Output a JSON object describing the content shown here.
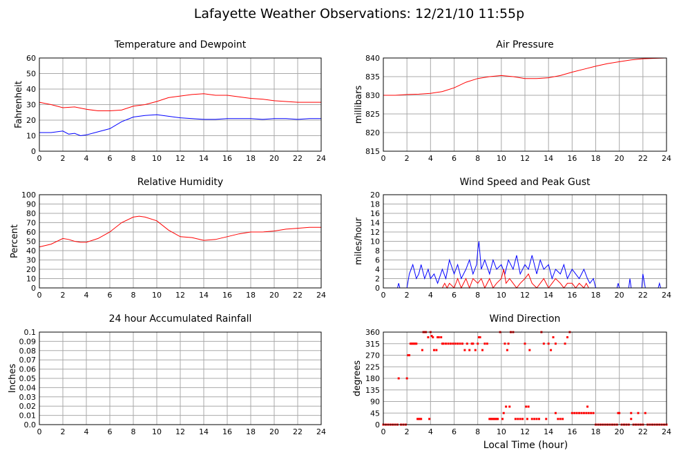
{
  "title": "Lafayette Weather Observations: 12/21/10 11:55p",
  "xlabel": "Local Time (hour)",
  "colors": {
    "red": "#ff0000",
    "blue": "#0000ff",
    "grid": "#a8a8a8"
  },
  "chart_data": [
    {
      "id": "temp",
      "type": "line",
      "title": "Temperature and Dewpoint",
      "ylabel": "Fahrenheit",
      "xlim": [
        0,
        24
      ],
      "ylim": [
        0,
        60
      ],
      "xticks": [
        "0",
        "2",
        "4",
        "6",
        "8",
        "10",
        "12",
        "14",
        "16",
        "18",
        "20",
        "22",
        "24"
      ],
      "yticks": [
        "0",
        "10",
        "20",
        "30",
        "40",
        "50",
        "60"
      ],
      "grid": true,
      "series": [
        {
          "color": "#ff0000",
          "x": [
            0,
            1,
            2,
            3,
            4,
            5,
            6,
            7,
            8,
            9,
            10,
            11,
            12,
            13,
            14,
            15,
            16,
            17,
            18,
            19,
            20,
            21,
            22,
            23,
            24
          ],
          "y": [
            31.5,
            30,
            28,
            28.5,
            27,
            26,
            26,
            26.5,
            29,
            30,
            32,
            34.5,
            35.5,
            36.5,
            37,
            36,
            36,
            35,
            34,
            33.5,
            32.5,
            32,
            31.5,
            31.5,
            31.5
          ]
        },
        {
          "color": "#0000ff",
          "x": [
            0,
            1,
            2,
            2.5,
            3,
            3.5,
            4,
            5,
            6,
            7,
            8,
            9,
            10,
            11,
            12,
            13,
            14,
            15,
            16,
            17,
            18,
            19,
            20,
            21,
            22,
            23,
            24
          ],
          "y": [
            12,
            12,
            13,
            11,
            11.5,
            10,
            10.5,
            12.5,
            14.5,
            19,
            22,
            23,
            23.5,
            22.5,
            21.5,
            21,
            20.5,
            20.5,
            21,
            21,
            21,
            20.5,
            21,
            21,
            20.5,
            21,
            21
          ]
        }
      ]
    },
    {
      "id": "pressure",
      "type": "line",
      "title": "Air Pressure",
      "ylabel": "millibars",
      "xlim": [
        0,
        24
      ],
      "ylim": [
        815,
        840
      ],
      "xticks": [
        "0",
        "2",
        "4",
        "6",
        "8",
        "10",
        "12",
        "14",
        "16",
        "18",
        "20",
        "22",
        "24"
      ],
      "yticks": [
        "815",
        "820",
        "825",
        "830",
        "835",
        "840"
      ],
      "grid": true,
      "series": [
        {
          "color": "#ff0000",
          "x": [
            0,
            1,
            2,
            3,
            4,
            5,
            6,
            7,
            8,
            9,
            10,
            11,
            12,
            13,
            14,
            15,
            16,
            17,
            18,
            19,
            20,
            21,
            22,
            23,
            24
          ],
          "y": [
            830,
            830,
            830.2,
            830.3,
            830.5,
            831,
            832,
            833.5,
            834.5,
            835,
            835.3,
            835,
            834.5,
            834.5,
            834.7,
            835.3,
            836.2,
            837,
            837.8,
            838.5,
            839,
            839.5,
            839.8,
            839.9,
            840
          ]
        }
      ]
    },
    {
      "id": "humidity",
      "type": "line",
      "title": "Relative Humidity",
      "ylabel": "Percent",
      "xlim": [
        0,
        24
      ],
      "ylim": [
        0,
        100
      ],
      "xticks": [
        "0",
        "2",
        "4",
        "6",
        "8",
        "10",
        "12",
        "14",
        "16",
        "18",
        "20",
        "22",
        "24"
      ],
      "yticks": [
        "0",
        "10",
        "20",
        "30",
        "40",
        "50",
        "60",
        "70",
        "80",
        "90",
        "100"
      ],
      "grid": true,
      "series": [
        {
          "color": "#ff0000",
          "x": [
            0,
            1,
            2,
            2.5,
            3,
            3.5,
            4,
            5,
            6,
            7,
            8,
            8.5,
            9,
            10,
            11,
            12,
            13,
            14,
            15,
            16,
            17,
            18,
            19,
            20,
            21,
            22,
            23,
            24
          ],
          "y": [
            44,
            47,
            53,
            52,
            50,
            49,
            49,
            53,
            60,
            70,
            76,
            77,
            76,
            72,
            62,
            55,
            54,
            51,
            52,
            55,
            58,
            60,
            60,
            61,
            63,
            64,
            65,
            65
          ]
        }
      ]
    },
    {
      "id": "wind",
      "type": "line",
      "title": "Wind Speed and Peak Gust",
      "ylabel": "miles/hour",
      "xlim": [
        0,
        24
      ],
      "ylim": [
        0,
        20
      ],
      "xticks": [
        "0",
        "2",
        "4",
        "6",
        "8",
        "10",
        "12",
        "14",
        "16",
        "18",
        "20",
        "22",
        "24"
      ],
      "yticks": [
        "0",
        "2",
        "4",
        "6",
        "8",
        "10",
        "12",
        "14",
        "16",
        "18",
        "20"
      ],
      "grid": true,
      "series": [
        {
          "color": "#0000ff",
          "x": [
            0,
            1.2,
            1.3,
            1.4,
            2,
            2.2,
            2.5,
            2.8,
            3,
            3.2,
            3.5,
            3.8,
            4,
            4.3,
            4.6,
            5,
            5.3,
            5.6,
            6,
            6.3,
            6.6,
            7,
            7.3,
            7.6,
            7.9,
            8.0,
            8.1,
            8.3,
            8.6,
            9,
            9.3,
            9.6,
            10,
            10.3,
            10.6,
            11,
            11.3,
            11.6,
            12,
            12.3,
            12.6,
            13,
            13.3,
            13.6,
            14,
            14.3,
            14.6,
            15,
            15.3,
            15.6,
            16,
            16.3,
            16.6,
            17,
            17.3,
            17.5,
            17.8,
            18,
            19.8,
            19.9,
            20,
            20.2,
            20.8,
            20.9,
            21,
            21.2,
            21.9,
            22,
            22.2,
            23.3,
            23.4,
            23.5,
            24
          ],
          "y": [
            0,
            0,
            1,
            0,
            0,
            3,
            5,
            2,
            3,
            5,
            2,
            4,
            2,
            3,
            1,
            4,
            2,
            6,
            3,
            5,
            2,
            4,
            6,
            3,
            5,
            8,
            10,
            4,
            6,
            3,
            6,
            4,
            5,
            3,
            6,
            4,
            7,
            3,
            5,
            4,
            7,
            3,
            6,
            4,
            5,
            2,
            4,
            3,
            5,
            2,
            4,
            3,
            2,
            4,
            2,
            1,
            2,
            0,
            0,
            1,
            0,
            0,
            0,
            2,
            0,
            0,
            0,
            3,
            0,
            0,
            1,
            0,
            0
          ]
        },
        {
          "color": "#ff0000",
          "x": [
            0,
            5,
            5.2,
            5.4,
            5.6,
            6,
            6.3,
            6.6,
            7,
            7.3,
            7.6,
            8,
            8.3,
            8.6,
            9,
            9.3,
            9.6,
            10,
            10.2,
            10.4,
            10.7,
            11,
            11.3,
            11.6,
            12,
            12.3,
            12.6,
            13,
            13.3,
            13.6,
            14,
            14.3,
            14.6,
            15,
            15.3,
            15.6,
            16,
            16.3,
            16.6,
            17,
            17.2,
            17.4,
            18,
            24
          ],
          "y": [
            0,
            0,
            1,
            0,
            1,
            0,
            2,
            0,
            2,
            0,
            2,
            1,
            2,
            0,
            2,
            0,
            1,
            2,
            4,
            1,
            2,
            1,
            0,
            1,
            2,
            3,
            1,
            0,
            1,
            2,
            0,
            1,
            2,
            1,
            0,
            1,
            1,
            0,
            1,
            0,
            1,
            0,
            0,
            0
          ]
        }
      ]
    },
    {
      "id": "rain",
      "type": "line",
      "title": "24 hour Accumulated Rainfall",
      "ylabel": "Inches",
      "xlim": [
        0,
        24
      ],
      "ylim": [
        0,
        0.1
      ],
      "xticks": [
        "0",
        "2",
        "4",
        "6",
        "8",
        "10",
        "12",
        "14",
        "16",
        "18",
        "20",
        "22",
        "24"
      ],
      "yticks": [
        "0.0",
        "0.01",
        "0.02",
        "0.03",
        "0.04",
        "0.05",
        "0.06",
        "0.07",
        "0.08",
        "0.09",
        "0.1"
      ],
      "grid": true,
      "series": [
        {
          "color": "#ff0000",
          "x": [
            0,
            24
          ],
          "y": [
            0,
            0
          ]
        }
      ]
    },
    {
      "id": "direction",
      "type": "scatter",
      "title": "Wind Direction",
      "ylabel": "degrees",
      "xlim": [
        0,
        24
      ],
      "ylim": [
        0,
        360
      ],
      "xticks": [
        "0",
        "2",
        "4",
        "6",
        "8",
        "10",
        "12",
        "14",
        "16",
        "18",
        "20",
        "22",
        "24"
      ],
      "yticks": [
        "0",
        "45",
        "90",
        "135",
        "180",
        "225",
        "270",
        "315",
        "360"
      ],
      "grid": true,
      "series": [
        {
          "color": "#ff0000",
          "x": [
            0,
            0.2,
            0.4,
            0.6,
            0.8,
            1.0,
            1.2,
            1.5,
            1.7,
            1.9,
            1.3,
            2.0,
            2.1,
            2.2,
            2.3,
            2.4,
            2.5,
            2.6,
            2.7,
            2.8,
            2.9,
            3.0,
            3.1,
            3.2,
            3.3,
            3.4,
            3.5,
            3.6,
            3.8,
            3.9,
            4.0,
            4.1,
            4.2,
            4.3,
            4.5,
            4.6,
            4.7,
            4.9,
            5.0,
            5.1,
            5.3,
            5.5,
            5.7,
            5.9,
            6.1,
            6.3,
            6.5,
            6.7,
            6.9,
            7.1,
            7.3,
            7.5,
            7.6,
            7.8,
            8.0,
            8.1,
            8.2,
            8.4,
            8.6,
            8.8,
            9.0,
            9.2,
            9.4,
            9.5,
            9.7,
            9.9,
            10.1,
            10.3,
            10.5,
            10.6,
            10.8,
            11.0,
            11.2,
            11.4,
            11.6,
            11.8,
            12.0,
            12.2,
            12.4,
            12.6,
            12.8,
            13.0,
            13.2,
            13.4,
            13.6,
            13.8,
            14.0,
            14.2,
            14.4,
            14.6,
            14.8,
            15.0,
            15.2,
            15.4,
            15.6,
            15.8,
            16.0,
            16.2,
            16.4,
            16.6,
            16.8,
            17.0,
            17.2,
            17.4,
            17.6,
            17.8,
            18.0,
            18.2,
            18.4,
            18.6,
            18.8,
            19.0,
            19.2,
            19.4,
            19.6,
            19.8,
            20.0,
            20.2,
            20.4,
            20.6,
            20.8,
            21.0,
            21.2,
            21.4,
            21.6,
            21.8,
            22.0,
            22.2,
            22.4,
            22.6,
            22.8,
            23.0,
            23.2,
            23.4,
            23.6,
            23.8,
            24.0,
            9.1,
            9.3,
            9.6,
            10.2,
            10.4,
            10.7,
            12.1,
            12.3,
            14.6,
            17.3,
            19.9,
            21.0,
            21.6
          ],
          "y": [
            0,
            0,
            0,
            0,
            0,
            0,
            0,
            0,
            0,
            0,
            180,
            180,
            270,
            270,
            315,
            315,
            315,
            315,
            315,
            315,
            22,
            22,
            22,
            22,
            290,
            360,
            360,
            360,
            340,
            22,
            360,
            345,
            340,
            290,
            290,
            340,
            340,
            340,
            315,
            315,
            315,
            315,
            315,
            315,
            315,
            315,
            315,
            315,
            290,
            315,
            290,
            315,
            315,
            290,
            315,
            340,
            340,
            290,
            315,
            315,
            22,
            22,
            22,
            22,
            22,
            360,
            22,
            315,
            290,
            315,
            360,
            360,
            22,
            22,
            22,
            22,
            315,
            22,
            290,
            22,
            22,
            22,
            22,
            360,
            315,
            22,
            315,
            290,
            340,
            315,
            22,
            22,
            22,
            315,
            340,
            360,
            45,
            45,
            45,
            45,
            45,
            45,
            45,
            45,
            45,
            45,
            0,
            0,
            0,
            0,
            0,
            0,
            0,
            0,
            0,
            0,
            45,
            0,
            0,
            0,
            0,
            45,
            0,
            0,
            0,
            0,
            0,
            45,
            0,
            0,
            0,
            0,
            0,
            0,
            0,
            0,
            0,
            22,
            22,
            22,
            45,
            70,
            70,
            70,
            70,
            45,
            70,
            45,
            22,
            45
          ]
        }
      ]
    }
  ]
}
